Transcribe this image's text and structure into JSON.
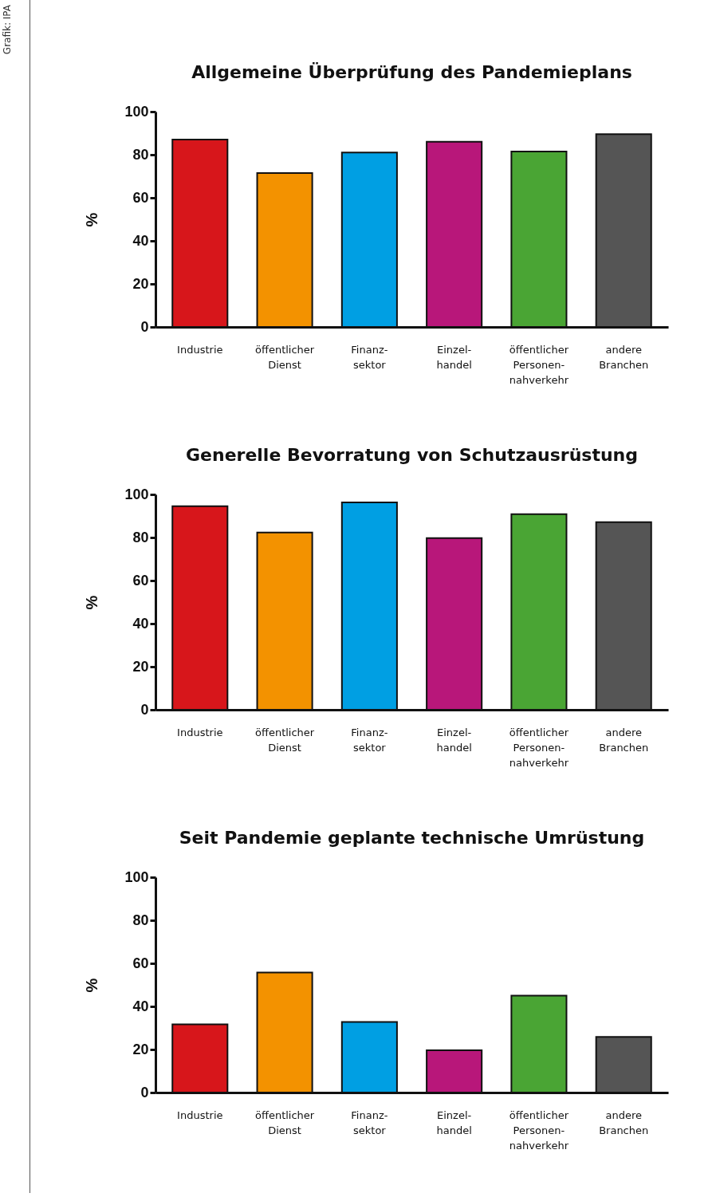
{
  "chart_data": [
    {
      "type": "bar",
      "title": "Allgemeine Überprüfung des Pandemieplans",
      "ylabel": "%",
      "categories": [
        "Industrie",
        "öffentlicher\nDienst",
        "Finanz-\nsektor",
        "Einzel-\nhandel",
        "öffentlicher\nPersonen-\nnahverkehr",
        "andere\nBranchen"
      ],
      "values": [
        87,
        71.5,
        81,
        86,
        81.5,
        89.5
      ],
      "colors": [
        "#d7161b",
        "#f39200",
        "#009fe3",
        "#b8177a",
        "#4aa534",
        "#555555"
      ],
      "ylim": [
        0,
        100
      ],
      "yticks": [
        0,
        20,
        40,
        60,
        80,
        100
      ],
      "annotations": [
        "Grafik: IPA"
      ]
    },
    {
      "type": "bar",
      "title": "Generelle Bevorratung von Schutzausrüstung",
      "ylabel": "%",
      "categories": [
        "Industrie",
        "öffentlicher\nDienst",
        "Finanz-\nsektor",
        "Einzel-\nhandel",
        "öffentlicher\nPersonen-\nnahverkehr",
        "andere\nBranchen"
      ],
      "values": [
        94.5,
        82.3,
        96.3,
        79.7,
        90.8,
        87.1
      ],
      "colors": [
        "#d7161b",
        "#f39200",
        "#009fe3",
        "#b8177a",
        "#4aa534",
        "#555555"
      ],
      "ylim": [
        0,
        100
      ],
      "yticks": [
        0,
        20,
        40,
        60,
        80,
        100
      ]
    },
    {
      "type": "bar",
      "title": "Seit Pandemie geplante technische Umrüstung",
      "ylabel": "%",
      "categories": [
        "Industrie",
        "öffentlicher\nDienst",
        "Finanz-\nsektor",
        "Einzel-\nhandel",
        "öffentlicher\nPersonen-\nnahverkehr",
        "andere\nBranchen"
      ],
      "values": [
        31.7,
        55.7,
        32.8,
        19.6,
        45,
        25.8
      ],
      "colors": [
        "#d7161b",
        "#f39200",
        "#009fe3",
        "#b8177a",
        "#4aa534",
        "#555555"
      ],
      "ylim": [
        0,
        100
      ],
      "yticks": [
        0,
        20,
        40,
        60,
        80,
        100
      ]
    }
  ]
}
